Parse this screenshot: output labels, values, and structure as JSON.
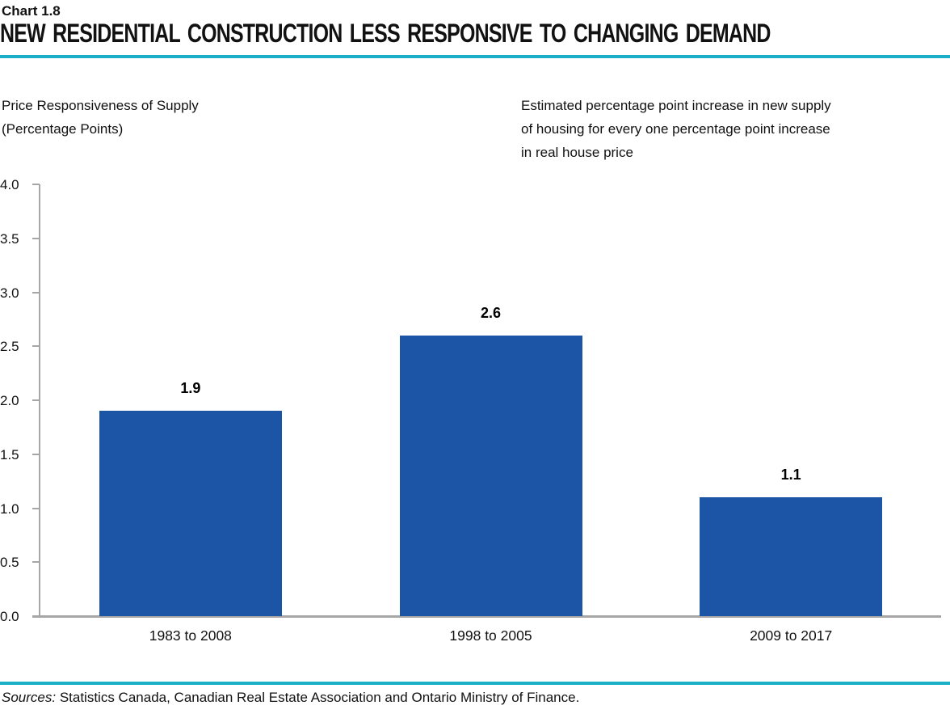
{
  "header": {
    "chart_number": "Chart 1.8",
    "title": "NEW RESIDENTIAL CONSTRUCTION LESS RESPONSIVE TO CHANGING DEMAND"
  },
  "subtitle_left": {
    "line1": "Price Responsiveness of Supply",
    "line2": "(Percentage Points)"
  },
  "note_right": {
    "line1": "Estimated percentage point increase in new supply",
    "line2": "of housing for every one percentage point increase",
    "line3": "in real house price"
  },
  "source": {
    "label": "Sources:",
    "text": " Statistics Canada, Canadian Real Estate Association and Ontario Ministry of Finance."
  },
  "colors": {
    "bar": "#1C55A5",
    "accent_rule": "#1AAEC8",
    "axis": "#A6A6A6"
  },
  "chart_data": {
    "type": "bar",
    "title": "NEW RESIDENTIAL CONSTRUCTION LESS RESPONSIVE TO CHANGING DEMAND",
    "categories": [
      "1983 to 2008",
      "1998 to 2005",
      "2009 to 2017"
    ],
    "values": [
      1.9,
      2.6,
      1.1
    ],
    "bar_labels": [
      "1.9",
      "2.6",
      "1.1"
    ],
    "xlabel": "",
    "ylabel": "Price Responsiveness of Supply (Percentage Points)",
    "ylim": [
      0.0,
      4.0
    ],
    "ytick_step": 0.5,
    "ytick_labels": [
      "0.0",
      "0.5",
      "1.0",
      "1.5",
      "2.0",
      "2.5",
      "3.0",
      "3.5",
      "4.0"
    ],
    "grid": false,
    "legend_position": "none"
  }
}
